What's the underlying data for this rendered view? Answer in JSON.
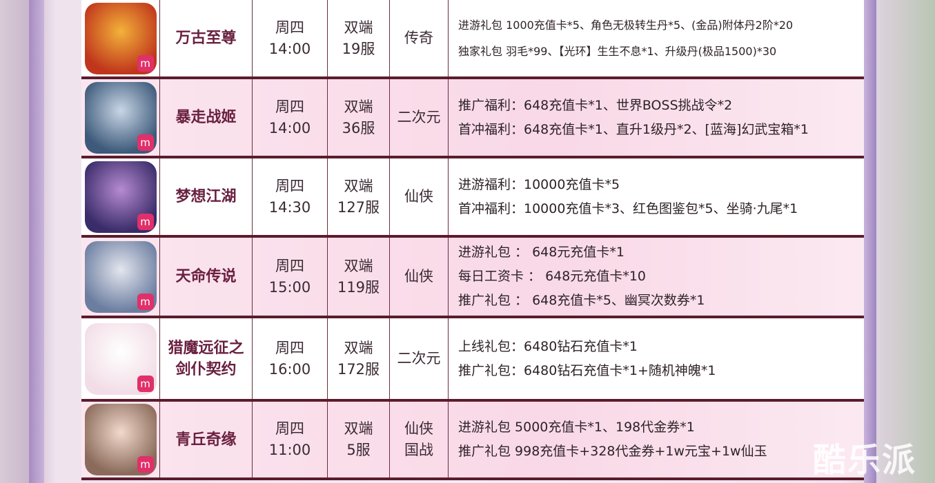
{
  "games": [
    {
      "name": "万古至尊",
      "day": "周四",
      "time": "14:00",
      "platform": "双端",
      "server": "19服",
      "genre": "传奇",
      "gifts": [
        "进游礼包 1000充值卡*5、角色无极转生丹*5、(金品)附体丹2阶*20",
        "独家礼包 羽毛*99、【光环】生生不息*1、升级丹(极品1500)*30"
      ],
      "icon_colors": [
        "#c0361c",
        "#f3b23a"
      ]
    },
    {
      "name": "暴走战姬",
      "day": "周四",
      "time": "14:00",
      "platform": "双端",
      "server": "36服",
      "genre": "二次元",
      "gifts": [
        "推广福利：648充值卡*1、世界BOSS挑战令*2",
        "首冲福利：648充值卡*1、直升1级丹*2、[蓝海]幻武宝箱*1"
      ],
      "icon_colors": [
        "#3d5a7a",
        "#c9d6e6"
      ]
    },
    {
      "name": "梦想江湖",
      "day": "周四",
      "time": "14:30",
      "platform": "双端",
      "server": "127服",
      "genre": "仙侠",
      "gifts": [
        "进游福利：10000充值卡*5",
        "首冲福利：10000充值卡*3、红色图鉴包*5、坐骑·九尾*1"
      ],
      "icon_colors": [
        "#3a2c6a",
        "#b68bd0"
      ]
    },
    {
      "name": "天命传说",
      "day": "周四",
      "time": "15:00",
      "platform": "双端",
      "server": "119服",
      "genre": "仙侠",
      "gifts": [
        "进游礼包 ： 648元充值卡*1",
        "每日工资卡 ：  648元充值卡*10",
        "推广礼包 ：  648充值卡*5、幽冥次数券*1"
      ],
      "icon_colors": [
        "#6c7ea0",
        "#e4e6ef"
      ]
    },
    {
      "name": "猎魔远征之剑仆契约",
      "name_lines": [
        "猎魔远征之",
        "剑仆契约"
      ],
      "day": "周四",
      "time": "16:00",
      "platform": "双端",
      "server": "172服",
      "genre": "二次元",
      "gifts": [
        "上线礼包：6480钻石充值卡*1",
        "推广礼包：6480钻石充值卡*1+随机神魄*1"
      ],
      "icon_colors": [
        "#f2dde6",
        "#ffffff"
      ]
    },
    {
      "name": "青丘奇缘",
      "day": "周四",
      "time": "11:00",
      "platform": "双端",
      "server": "5服",
      "genre": "仙侠 国战",
      "genre_lines": [
        "仙侠",
        "国战"
      ],
      "gifts": [
        "进游礼包  5000充值卡*1、198代金券*1",
        "推广礼包  998充值卡+328代金券+1w元宝+1w仙玉"
      ],
      "icon_colors": [
        "#8a6a5a",
        "#f1d9cc"
      ]
    }
  ],
  "badge_glyph": "m",
  "watermark": "酷乐派",
  "colors": {
    "divider": "#5b1c2c",
    "name": "#6a2040",
    "pink_row": "#f9d8e7"
  }
}
